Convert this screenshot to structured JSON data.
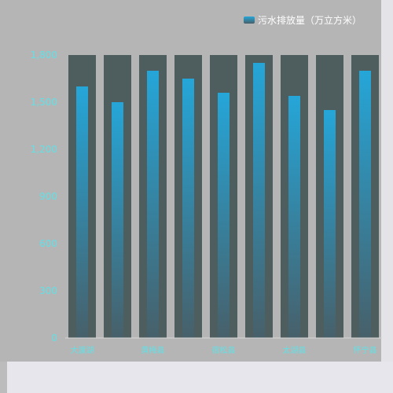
{
  "chart_data": {
    "type": "bar",
    "series": [
      {
        "name": "污水排放量（万立方米）",
        "values": [
          1600,
          1500,
          1700,
          1650,
          1560,
          1750,
          1540,
          1450,
          1700
        ]
      }
    ],
    "categories": [
      "大渡湖",
      "",
      "黄梅县",
      "",
      "宿松县",
      "",
      "太湖县",
      "",
      "怀宁县"
    ],
    "background_max": 1800,
    "ylim": [
      0,
      1800
    ],
    "yticks": [
      0,
      300,
      600,
      900,
      1200,
      1500,
      1800
    ],
    "ytick_labels": [
      "0",
      "300",
      "600",
      "900",
      "1,200",
      "1,500",
      "1,800"
    ],
    "legend_position": "top-right",
    "grid": false
  },
  "colors": {
    "bar_top": "#25a6d8",
    "bar_bottom": "#47606a",
    "background_bar": "#4e5d5d",
    "axis_text": "#62e0e6",
    "axis_line": "#d6d6d6"
  }
}
